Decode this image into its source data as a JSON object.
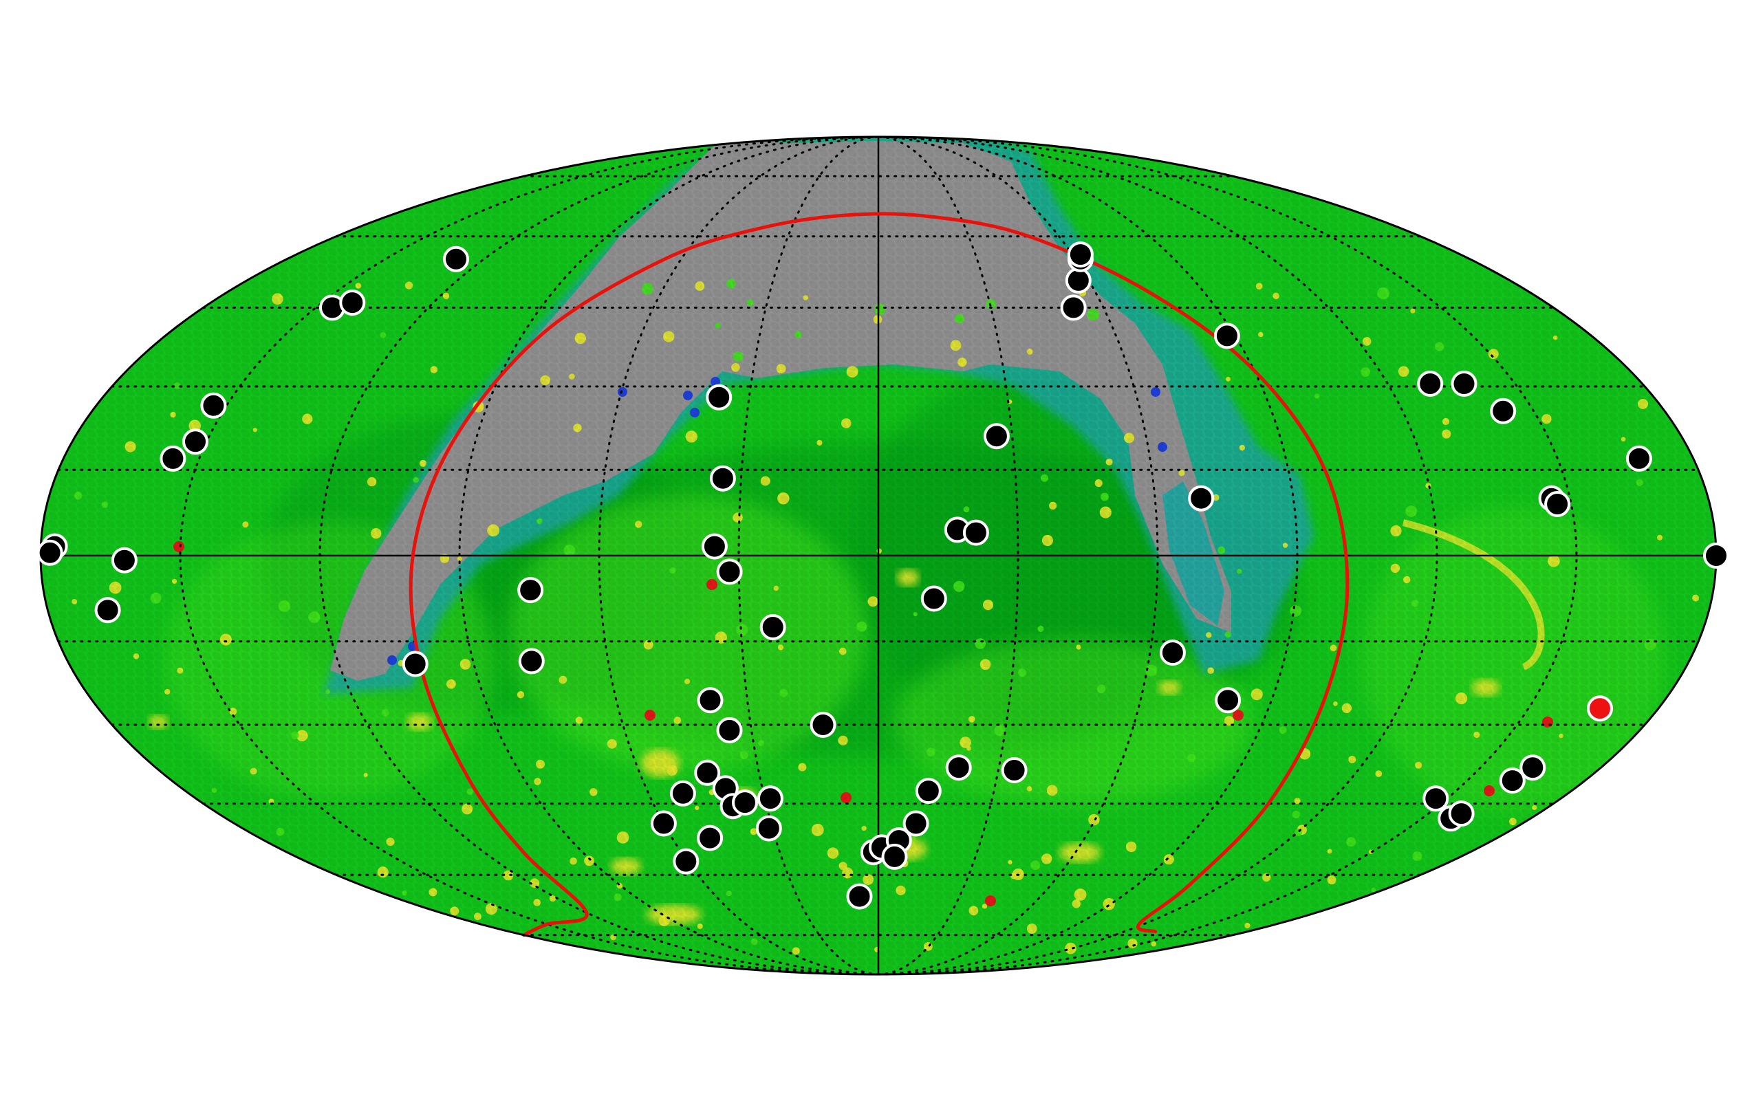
{
  "projection": "mollweide",
  "colors": {
    "background": "#ffffff",
    "sky_base": "#11c41a",
    "sky_dark": "#069a18",
    "sky_bright": "#3fe21a",
    "masked_region": "#909090",
    "cyan_region": "#1ba6a2",
    "blue_spots": "#1f3fd8",
    "yellow_spots": "#e4e82a",
    "red_spots": "#e01818",
    "graticule": "#000000",
    "outline": "#000000",
    "red_curve": "#e8120c",
    "marker_fill": "#000000",
    "marker_stroke": "#ffffff",
    "highlight_marker_fill": "#ee1111"
  },
  "graticule": {
    "meridian_step_deg": 30,
    "parallel_step_deg": 15,
    "style": "dotted",
    "central_axes": "solid"
  },
  "markers": [
    {
      "lon": 128.5,
      "lat": 55.0
    },
    {
      "lon": 145.6,
      "lat": 45.0
    },
    {
      "lon": 141.8,
      "lat": 46.0
    },
    {
      "lon": 153.0,
      "lat": 26.5
    },
    {
      "lon": 152.5,
      "lat": 20.0
    },
    {
      "lon": 155.8,
      "lat": 17.0
    },
    {
      "lon": 177.0,
      "lat": 1.6
    },
    {
      "lon": 178.0,
      "lat": 0.5
    },
    {
      "lon": 162.0,
      "lat": -0.8
    },
    {
      "lon": 167.0,
      "lat": -9.5
    },
    {
      "lon": 103.0,
      "lat": -19.0
    },
    {
      "lon": 75.0,
      "lat": -6.0
    },
    {
      "lon": 77.0,
      "lat": -18.5
    },
    {
      "lon": 37.0,
      "lat": 28.0
    },
    {
      "lon": 34.0,
      "lat": 13.5
    },
    {
      "lon": 35.2,
      "lat": 1.6
    },
    {
      "lon": 32.0,
      "lat": -2.8
    },
    {
      "lon": 23.0,
      "lat": -12.5
    },
    {
      "lon": 38.5,
      "lat": -25.5
    },
    {
      "lon": 35.2,
      "lat": -31.0
    },
    {
      "lon": 13.0,
      "lat": -30.0
    },
    {
      "lon": 51.0,
      "lat": -43.0
    },
    {
      "lon": 43.0,
      "lat": -39.0
    },
    {
      "lon": 60.0,
      "lat": -49.0
    },
    {
      "lon": 39.5,
      "lat": -42.0
    },
    {
      "lon": 39.0,
      "lat": -45.5
    },
    {
      "lon": 35.5,
      "lat": -44.8
    },
    {
      "lon": 28.5,
      "lat": -44.0
    },
    {
      "lon": 31.0,
      "lat": -50.0
    },
    {
      "lon": 60.5,
      "lat": -57.0
    },
    {
      "lon": 49.0,
      "lat": -52.0
    },
    {
      "lon": 7.0,
      "lat": -65.0
    },
    {
      "lon": 1.5,
      "lat": -55.0
    },
    {
      "lon": -1.0,
      "lat": -54.0
    },
    {
      "lon": -6.0,
      "lat": -52.5
    },
    {
      "lon": -5.0,
      "lat": -56.0
    },
    {
      "lon": -10.5,
      "lat": -49.0
    },
    {
      "lon": -13.0,
      "lat": -42.5
    },
    {
      "lon": -20.0,
      "lat": -38.0
    },
    {
      "lon": -34.0,
      "lat": -38.5
    },
    {
      "lon": -17.0,
      "lat": 4.5
    },
    {
      "lon": -21.0,
      "lat": 4.0
    },
    {
      "lon": -12.0,
      "lat": -7.5
    },
    {
      "lon": -26.5,
      "lat": 21.0
    },
    {
      "lon": -52.0,
      "lat": 45.0
    },
    {
      "lon": -57.0,
      "lat": 50.5
    },
    {
      "lon": -61.5,
      "lat": 55.0
    },
    {
      "lon": -62.5,
      "lat": 56.0
    },
    {
      "lon": -88.0,
      "lat": 39.5
    },
    {
      "lon": -65.0,
      "lat": -17.0
    },
    {
      "lon": -80.0,
      "lat": -25.5
    },
    {
      "lon": -70.0,
      "lat": 10.0
    },
    {
      "lon": -130.0,
      "lat": 30.5
    },
    {
      "lon": -138.0,
      "lat": 30.5
    },
    {
      "lon": -143.0,
      "lat": 25.5
    },
    {
      "lon": -168.0,
      "lat": 17.0
    },
    {
      "lon": -146.0,
      "lat": 10.0
    },
    {
      "lon": -147.0,
      "lat": 9.0
    },
    {
      "lon": -180.0,
      "lat": 0.0
    },
    {
      "lon": -158.0,
      "lat": -48.0
    },
    {
      "lon": -159.0,
      "lat": -47.0
    },
    {
      "lon": -161.5,
      "lat": -40.5
    },
    {
      "lon": -163.0,
      "lat": -38.0
    },
    {
      "lon": -147.0,
      "lat": -44.0
    }
  ],
  "highlight_markers": [
    {
      "lon": -166.5,
      "lat": -27.0
    }
  ],
  "red_curve": [
    {
      "lon": 180.0,
      "lat": -75.0
    },
    {
      "lon": 150.0,
      "lat": -72.0
    },
    {
      "lon": 120.0,
      "lat": -69.0
    },
    {
      "lon": 108.0,
      "lat": -55.0
    },
    {
      "lon": 104.0,
      "lat": -40.0
    },
    {
      "lon": 102.0,
      "lat": -20.0
    },
    {
      "lon": 100.0,
      "lat": 0.0
    },
    {
      "lon": 95.0,
      "lat": 20.0
    },
    {
      "lon": 85.0,
      "lat": 40.0
    },
    {
      "lon": 65.0,
      "lat": 55.0
    },
    {
      "lon": 40.0,
      "lat": 62.0
    },
    {
      "lon": 10.0,
      "lat": 65.0
    },
    {
      "lon": -20.0,
      "lat": 64.5
    },
    {
      "lon": -50.0,
      "lat": 60.0
    },
    {
      "lon": -75.0,
      "lat": 48.0
    },
    {
      "lon": -90.0,
      "lat": 33.0
    },
    {
      "lon": -98.0,
      "lat": 15.0
    },
    {
      "lon": -101.0,
      "lat": -5.0
    },
    {
      "lon": -102.0,
      "lat": -25.0
    },
    {
      "lon": -104.0,
      "lat": -45.0
    },
    {
      "lon": -108.0,
      "lat": -62.0
    },
    {
      "lon": -118.0,
      "lat": -72.0
    },
    {
      "lon": -135.0,
      "lat": -74.0
    }
  ]
}
